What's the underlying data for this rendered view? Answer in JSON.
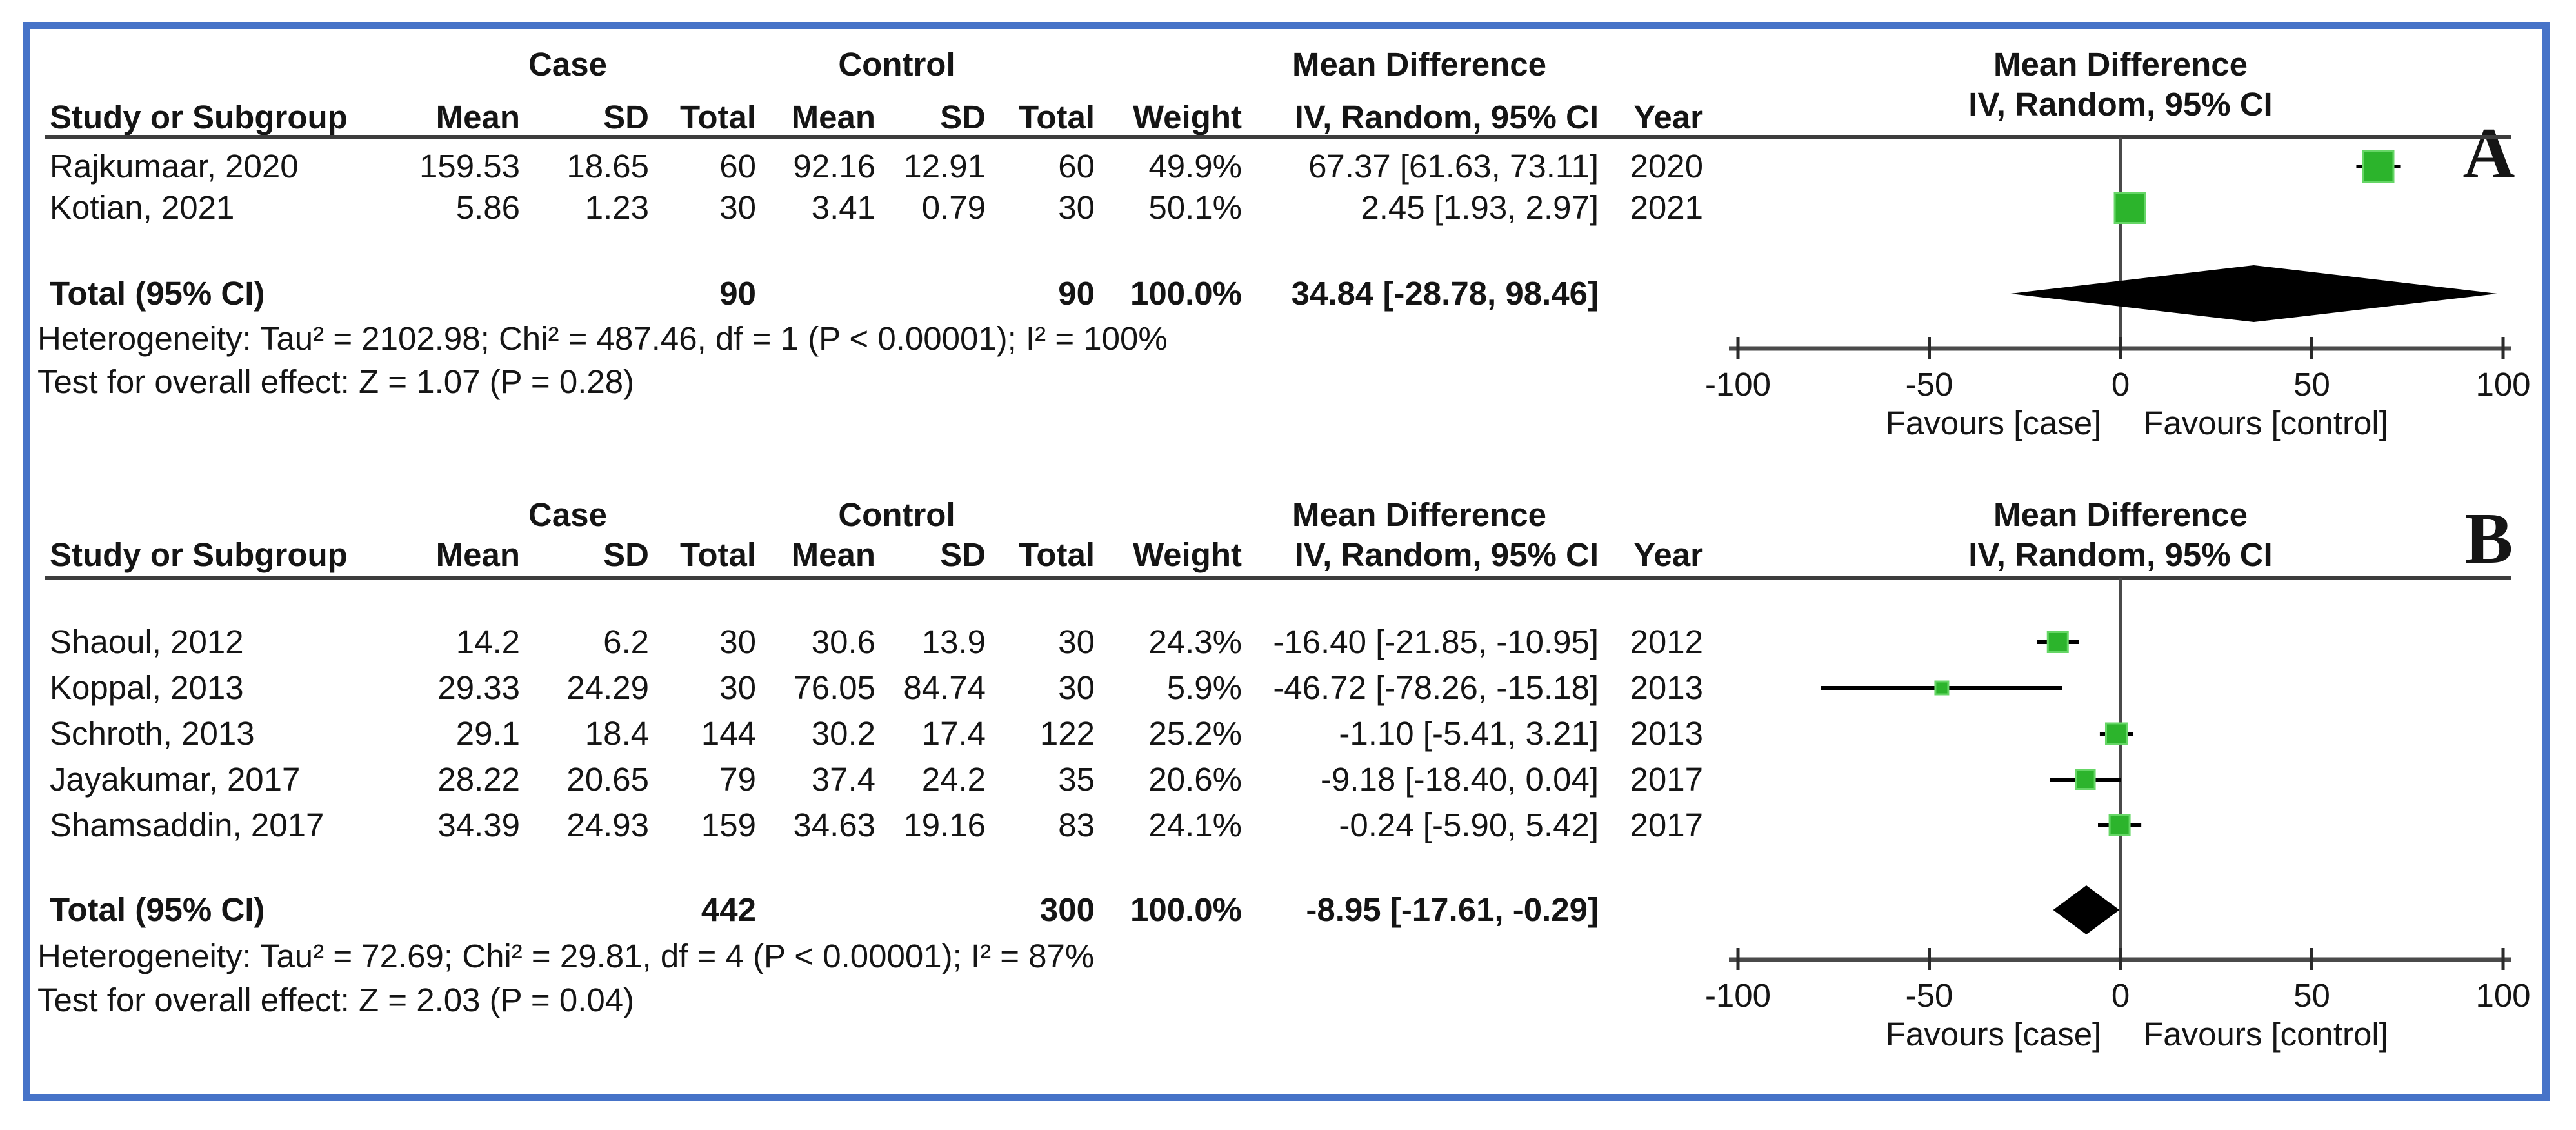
{
  "colors": {
    "border": "#4673c8",
    "square_fill": "#2cb42c",
    "square_edge": "#66d666",
    "diamond": "#000000",
    "rule": "#3d3d3d",
    "ci_line": "#000000"
  },
  "axis": {
    "min": -100,
    "max": 100,
    "ticks": [
      "-100",
      "-50",
      "0",
      "50",
      "100"
    ],
    "tick_values": [
      -100,
      -50,
      0,
      50,
      100
    ],
    "favours_left": "Favours [case]",
    "favours_right": "Favours [control]"
  },
  "chart_data": [
    {
      "type": "scatter",
      "subtype": "forest-plot",
      "panel_label": "A",
      "group_case": "Case",
      "group_control": "Control",
      "group_md": "Mean Difference",
      "title": "Mean Difference",
      "subtitle": "IV, Random, 95% CI",
      "columns": [
        "Study or Subgroup",
        "Mean",
        "SD",
        "Total",
        "Mean",
        "SD",
        "Total",
        "Weight",
        "IV, Random, 95% CI",
        "Year"
      ],
      "xlim": [
        -100,
        100
      ],
      "rows": [
        {
          "study": "Rajkumaar, 2020",
          "mean_case": "159.53",
          "sd_case": "18.65",
          "total_case": "60",
          "mean_ctrl": "92.16",
          "sd_ctrl": "12.91",
          "total_ctrl": "60",
          "weight": "49.9%",
          "md_text": "67.37 [61.63, 73.11]",
          "year": "2020",
          "md": 67.37,
          "ci_low": 61.63,
          "ci_high": 73.11,
          "weight_pct": 49.9
        },
        {
          "study": "Kotian, 2021",
          "mean_case": "5.86",
          "sd_case": "1.23",
          "total_case": "30",
          "mean_ctrl": "3.41",
          "sd_ctrl": "0.79",
          "total_ctrl": "30",
          "weight": "50.1%",
          "md_text": "2.45 [1.93, 2.97]",
          "year": "2021",
          "md": 2.45,
          "ci_low": 1.93,
          "ci_high": 2.97,
          "weight_pct": 50.1
        }
      ],
      "total": {
        "label": "Total (95% CI)",
        "total_case": "90",
        "total_ctrl": "90",
        "weight": "100.0%",
        "md_text": "34.84 [-28.78, 98.46]",
        "md": 34.84,
        "ci_low": -28.78,
        "ci_high": 98.46
      },
      "heterogeneity": "Heterogeneity: Tau² = 2102.98; Chi² = 487.46, df = 1 (P < 0.00001); I² = 100%",
      "overall_effect": "Test for overall effect: Z = 1.07 (P = 0.28)"
    },
    {
      "type": "scatter",
      "subtype": "forest-plot",
      "panel_label": "B",
      "group_case": "Case",
      "group_control": "Control",
      "group_md": "Mean Difference",
      "title": "Mean Difference",
      "subtitle": "IV, Random, 95% CI",
      "columns": [
        "Study or Subgroup",
        "Mean",
        "SD",
        "Total",
        "Mean",
        "SD",
        "Total",
        "Weight",
        "IV, Random, 95% CI",
        "Year"
      ],
      "xlim": [
        -100,
        100
      ],
      "rows": [
        {
          "study": "Shaoul, 2012",
          "mean_case": "14.2",
          "sd_case": "6.2",
          "total_case": "30",
          "mean_ctrl": "30.6",
          "sd_ctrl": "13.9",
          "total_ctrl": "30",
          "weight": "24.3%",
          "md_text": "-16.40 [-21.85, -10.95]",
          "year": "2012",
          "md": -16.4,
          "ci_low": -21.85,
          "ci_high": -10.95,
          "weight_pct": 24.3
        },
        {
          "study": "Koppal, 2013",
          "mean_case": "29.33",
          "sd_case": "24.29",
          "total_case": "30",
          "mean_ctrl": "76.05",
          "sd_ctrl": "84.74",
          "total_ctrl": "30",
          "weight": "5.9%",
          "md_text": "-46.72 [-78.26, -15.18]",
          "year": "2013",
          "md": -46.72,
          "ci_low": -78.26,
          "ci_high": -15.18,
          "weight_pct": 5.9
        },
        {
          "study": "Schroth, 2013",
          "mean_case": "29.1",
          "sd_case": "18.4",
          "total_case": "144",
          "mean_ctrl": "30.2",
          "sd_ctrl": "17.4",
          "total_ctrl": "122",
          "weight": "25.2%",
          "md_text": "-1.10 [-5.41, 3.21]",
          "year": "2013",
          "md": -1.1,
          "ci_low": -5.41,
          "ci_high": 3.21,
          "weight_pct": 25.2
        },
        {
          "study": "Jayakumar, 2017",
          "mean_case": "28.22",
          "sd_case": "20.65",
          "total_case": "79",
          "mean_ctrl": "37.4",
          "sd_ctrl": "24.2",
          "total_ctrl": "35",
          "weight": "20.6%",
          "md_text": "-9.18 [-18.40, 0.04]",
          "year": "2017",
          "md": -9.18,
          "ci_low": -18.4,
          "ci_high": 0.04,
          "weight_pct": 20.6
        },
        {
          "study": "Shamsaddin, 2017",
          "mean_case": "34.39",
          "sd_case": "24.93",
          "total_case": "159",
          "mean_ctrl": "34.63",
          "sd_ctrl": "19.16",
          "total_ctrl": "83",
          "weight": "24.1%",
          "md_text": "-0.24 [-5.90, 5.42]",
          "year": "2017",
          "md": -0.24,
          "ci_low": -5.9,
          "ci_high": 5.42,
          "weight_pct": 24.1
        }
      ],
      "total": {
        "label": "Total (95% CI)",
        "total_case": "442",
        "total_ctrl": "300",
        "weight": "100.0%",
        "md_text": "-8.95 [-17.61, -0.29]",
        "md": -8.95,
        "ci_low": -17.61,
        "ci_high": -0.29
      },
      "heterogeneity": "Heterogeneity: Tau² = 72.69; Chi² = 29.81, df = 4 (P < 0.00001); I² = 87%",
      "overall_effect": "Test for overall effect: Z = 2.03 (P = 0.04)"
    }
  ]
}
